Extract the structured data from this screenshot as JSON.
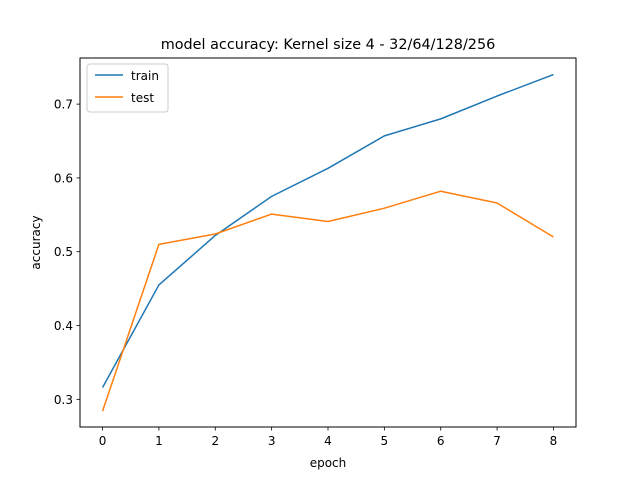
{
  "chart_data": {
    "type": "line",
    "title": "model accuracy: Kernel size 4 - 32/64/128/256",
    "xlabel": "epoch",
    "ylabel": "accuracy",
    "x": [
      0,
      1,
      2,
      3,
      4,
      5,
      6,
      7,
      8
    ],
    "xlim": [
      -0.4,
      8.4
    ],
    "ylim": [
      0.2625,
      0.7625
    ],
    "xticks": [
      0,
      1,
      2,
      3,
      4,
      5,
      6,
      7,
      8
    ],
    "yticks": [
      0.3,
      0.4,
      0.5,
      0.6,
      0.7
    ],
    "xtick_labels": [
      "0",
      "1",
      "2",
      "3",
      "4",
      "5",
      "6",
      "7",
      "8"
    ],
    "ytick_labels": [
      "0.3",
      "0.4",
      "0.5",
      "0.6",
      "0.7"
    ],
    "grid": false,
    "legend_position": "top-left",
    "series": [
      {
        "name": "train",
        "color": "#1f77b4",
        "values": [
          0.316,
          0.455,
          0.522,
          0.575,
          0.613,
          0.657,
          0.68,
          0.711,
          0.74
        ]
      },
      {
        "name": "test",
        "color": "#ff7f0e",
        "values": [
          0.284,
          0.51,
          0.524,
          0.551,
          0.541,
          0.559,
          0.582,
          0.566,
          0.52
        ]
      }
    ]
  }
}
